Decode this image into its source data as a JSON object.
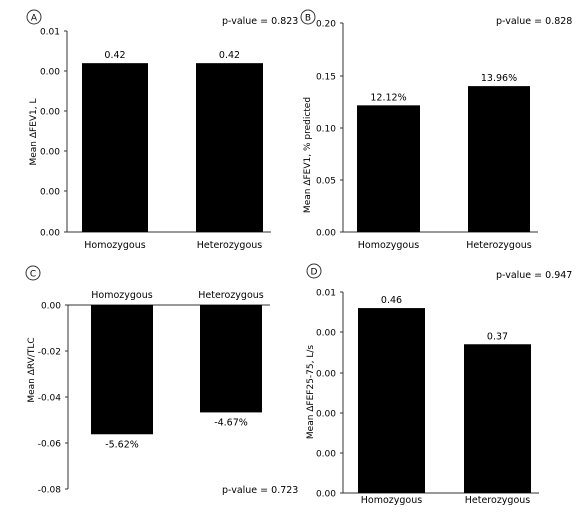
{
  "chart_data": [
    {
      "panel": "A",
      "type": "bar",
      "categories": [
        "Homozygous",
        "Heterozygous"
      ],
      "values": [
        0.42,
        0.42
      ],
      "data_labels": [
        "0.42",
        "0.42"
      ],
      "ylabel": "Mean ΔFEV1, L",
      "y_tick_labels": [
        "0.01",
        "0.00",
        "0.00",
        "0.00",
        "0.00",
        "0.00"
      ],
      "ylim": [
        0,
        0.5
      ],
      "p_value": "p-value = 0.823",
      "bar_color": "#000000",
      "grid": false
    },
    {
      "panel": "B",
      "type": "bar",
      "categories": [
        "Homozygous",
        "Heterozygous"
      ],
      "values": [
        0.1212,
        0.1396
      ],
      "data_labels": [
        "12.12%",
        "13.96%"
      ],
      "ylabel": "Mean ΔFEV1, % predicted",
      "y_tick_labels": [
        "0.20",
        "0.15",
        "0.10",
        "0.05",
        "0.00"
      ],
      "ylim": [
        0,
        0.2
      ],
      "p_value": "p-value = 0.828",
      "bar_color": "#000000",
      "grid": false
    },
    {
      "panel": "C",
      "type": "bar",
      "categories": [
        "Homozygous",
        "Heterozygous"
      ],
      "values": [
        -0.0562,
        -0.0467
      ],
      "data_labels": [
        "-5.62%",
        "-4.67%"
      ],
      "ylabel": "Mean ΔRV/TLC",
      "y_tick_labels": [
        "0.00",
        "-0.02",
        "-0.04",
        "-0.06",
        "-0.08"
      ],
      "ylim": [
        -0.08,
        0
      ],
      "p_value": "p-value = 0.723",
      "bar_color": "#000000",
      "grid": false
    },
    {
      "panel": "D",
      "type": "bar",
      "categories": [
        "Homozygous",
        "Heterozygous"
      ],
      "values": [
        0.46,
        0.37
      ],
      "data_labels": [
        "0.46",
        "0.37"
      ],
      "ylabel": "Mean ΔFEF25-75, L/s",
      "y_tick_labels": [
        "0.01",
        "0.00",
        "0.00",
        "0.00",
        "0.00",
        "0.00"
      ],
      "ylim": [
        0,
        0.5
      ],
      "p_value": "p-value = 0.947",
      "bar_color": "#000000",
      "grid": false
    }
  ]
}
